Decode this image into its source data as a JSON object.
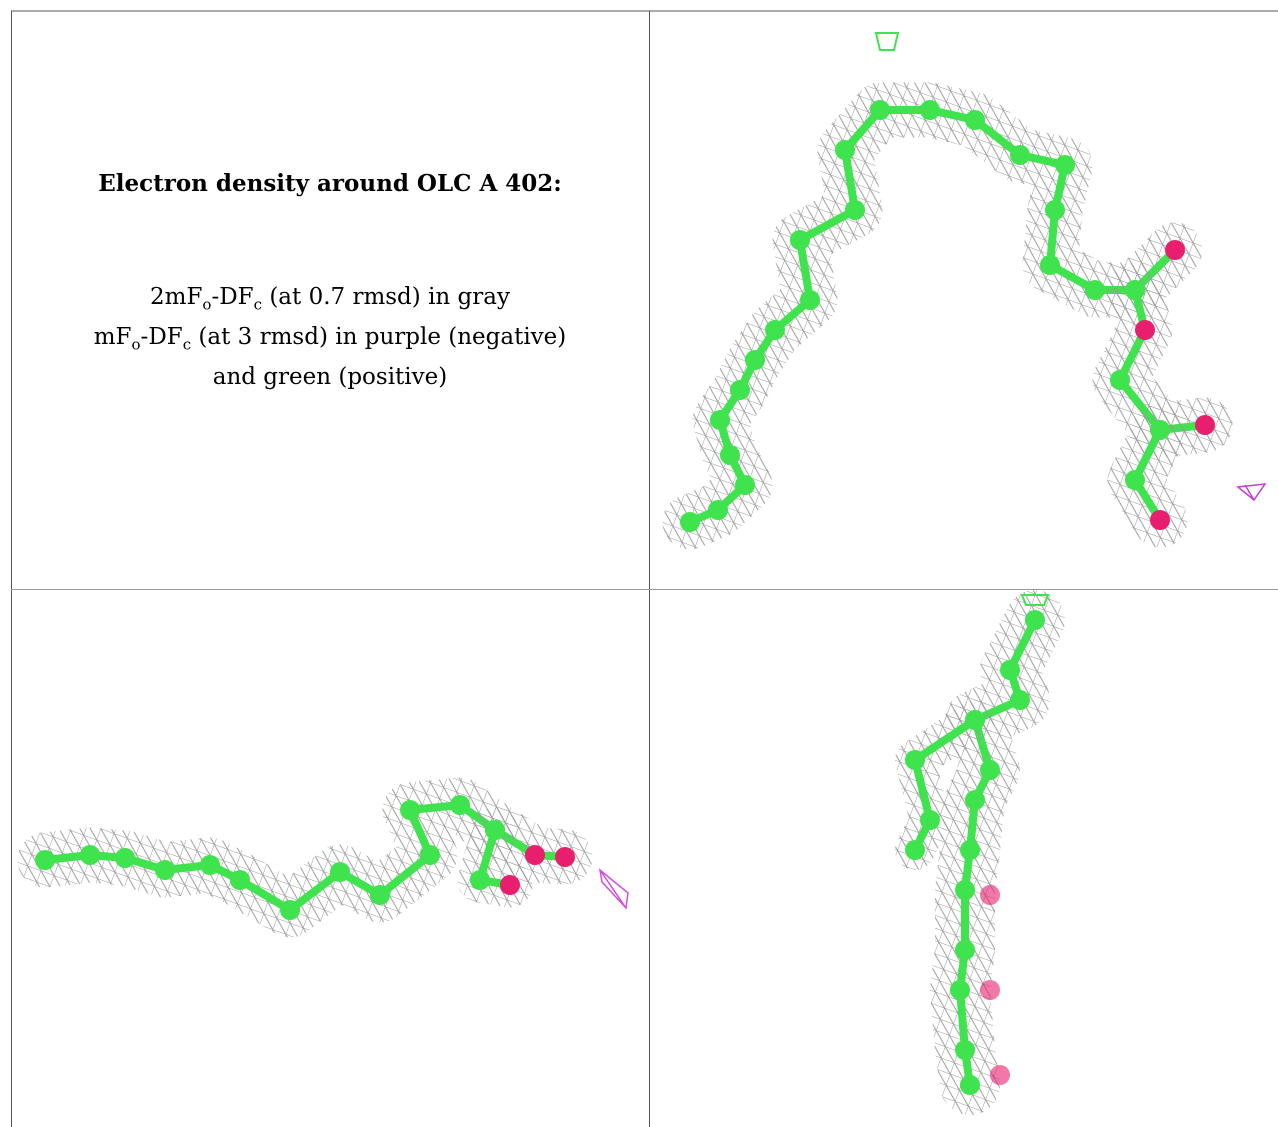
{
  "caption": {
    "title": "Electron density around OLC A 402:",
    "lines": [
      [
        {
          "text": "2mF"
        },
        {
          "sub": "o"
        },
        {
          "text": "-DF"
        },
        {
          "sub": "c"
        },
        {
          "text": " (at 0.7 rmsd) in gray"
        }
      ],
      [
        {
          "text": "mF"
        },
        {
          "sub": "o"
        },
        {
          "text": "-DF"
        },
        {
          "sub": "c"
        },
        {
          "text": " (at 3 rmsd) in purple (negative)"
        }
      ],
      [
        {
          "text": "and green (positive)"
        }
      ]
    ]
  }
}
